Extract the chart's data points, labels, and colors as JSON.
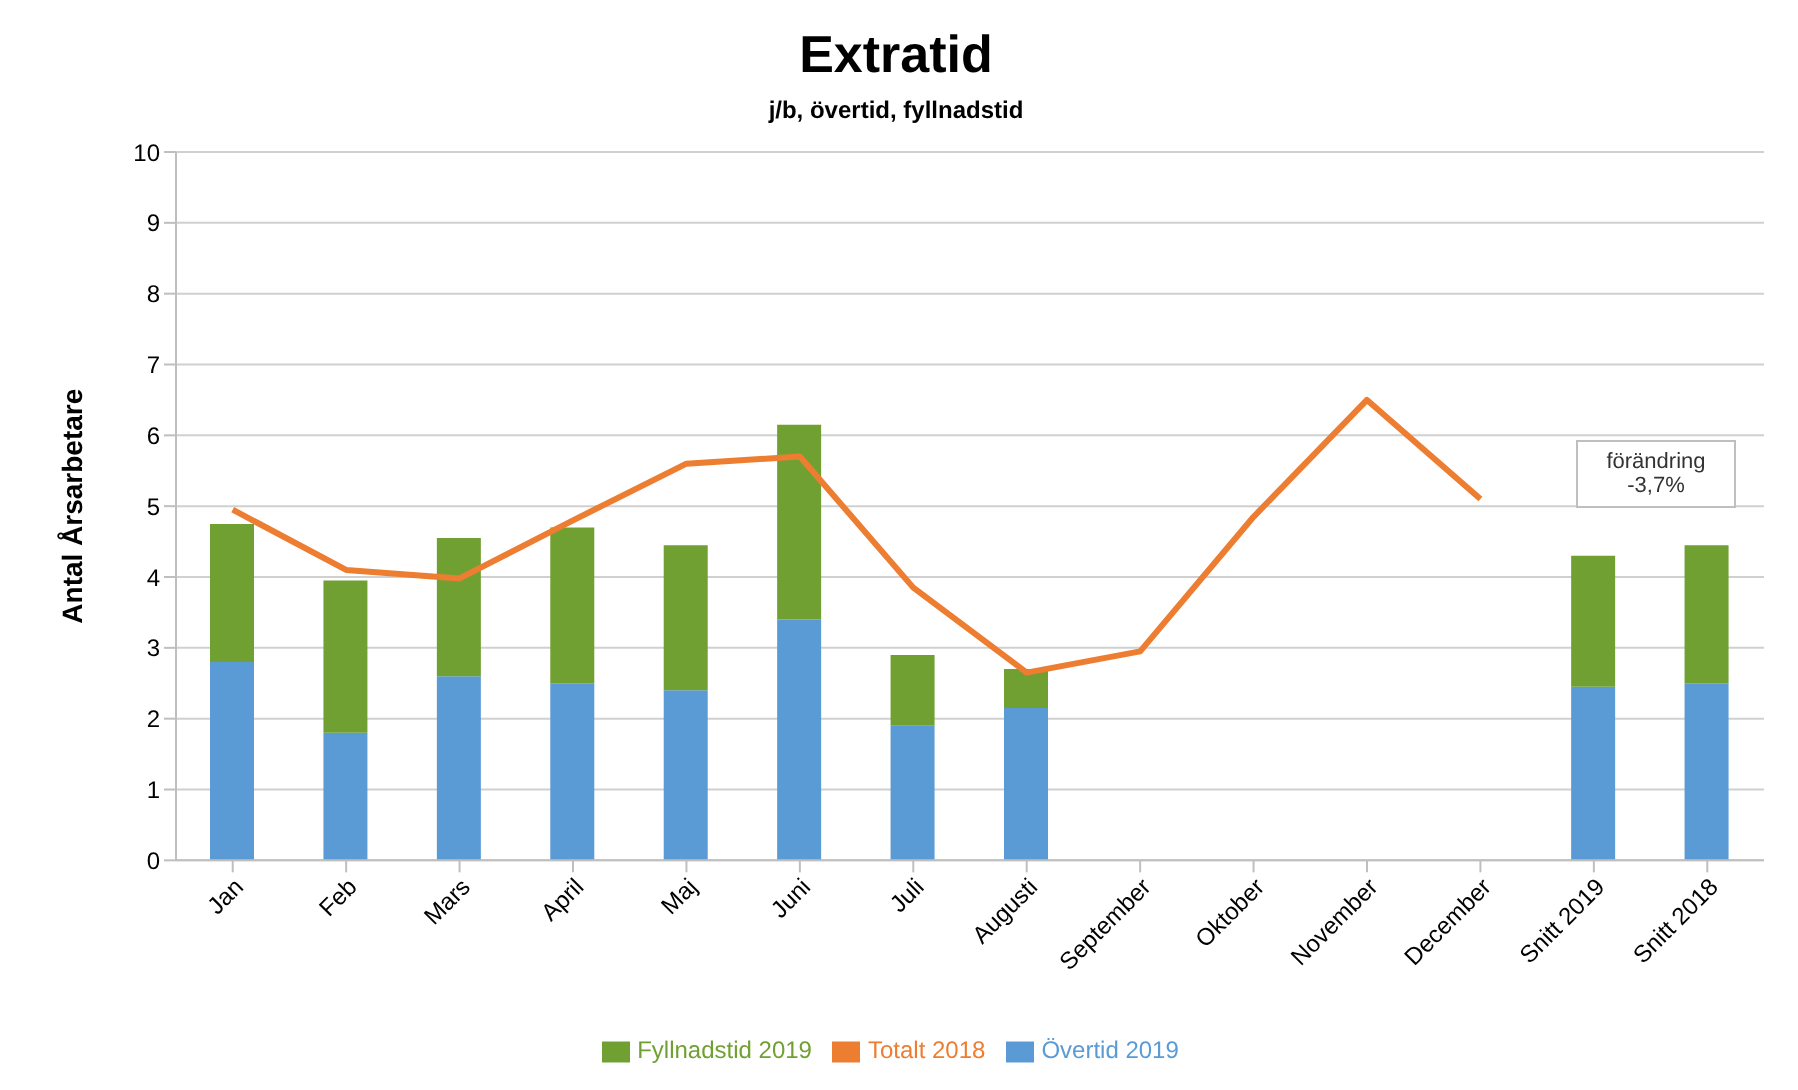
{
  "chart_data": {
    "type": "bar",
    "title": "Extratid",
    "subtitle": "j/b, övertid, fyllnadstid",
    "ylabel": "Antal Årsarbetare",
    "categories": [
      "Jan",
      "Feb",
      "Mars",
      "April",
      "Maj",
      "Juni",
      "Juli",
      "Augusti",
      "September",
      "Oktober",
      "November",
      "December",
      "Snitt 2019",
      "Snitt 2018"
    ],
    "stacked": true,
    "series": [
      {
        "name": "Övertid 2019",
        "color": "#5b9bd5",
        "values": [
          2.8,
          1.8,
          2.6,
          2.5,
          2.4,
          3.4,
          1.9,
          2.15,
          null,
          null,
          null,
          null,
          2.45,
          2.5
        ]
      },
      {
        "name": "Fyllnadstid 2019",
        "color": "#70a032",
        "values": [
          1.95,
          2.15,
          1.95,
          2.2,
          2.05,
          2.75,
          1.0,
          0.55,
          null,
          null,
          null,
          null,
          1.85,
          1.95
        ]
      },
      {
        "name": "Totalt 2018",
        "type": "line",
        "color": "#ed7d31",
        "values": [
          4.95,
          4.1,
          3.98,
          4.8,
          5.6,
          5.7,
          3.85,
          2.65,
          2.95,
          4.85,
          6.5,
          5.1,
          null,
          null
        ]
      }
    ],
    "ylim": [
      0,
      10
    ],
    "yticks": [
      0,
      1,
      2,
      3,
      4,
      5,
      6,
      7,
      8,
      9,
      10
    ],
    "grid": "y",
    "legend": "bottom",
    "marker": "none",
    "annotations": [
      "förändring -3,7%"
    ]
  }
}
